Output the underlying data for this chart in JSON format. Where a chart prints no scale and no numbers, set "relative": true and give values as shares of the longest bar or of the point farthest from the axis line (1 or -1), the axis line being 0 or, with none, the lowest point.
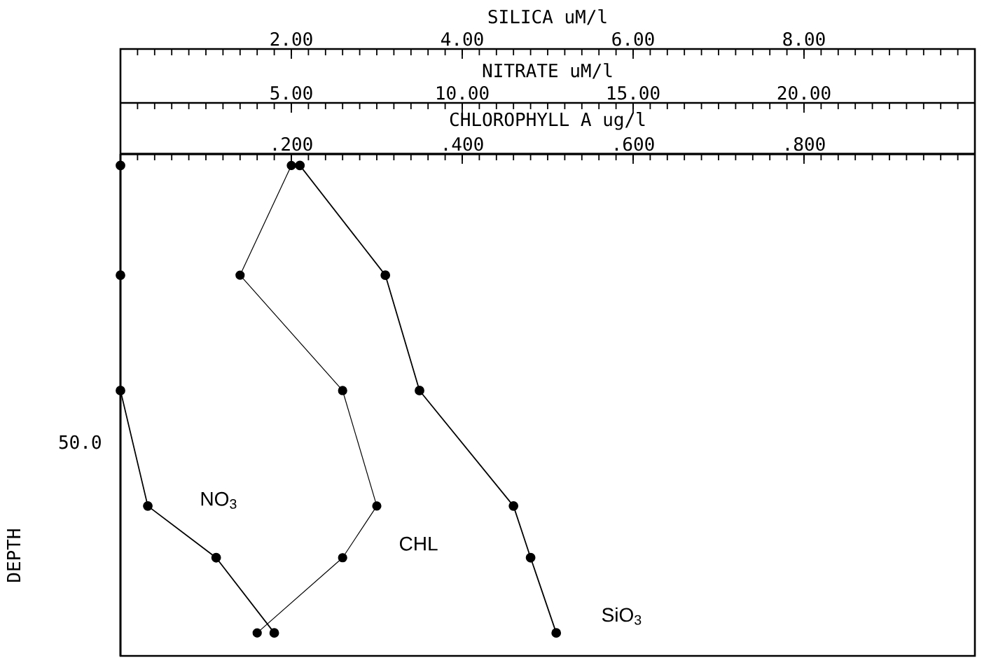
{
  "chart_data": [
    {
      "type": "line",
      "xlabel": "SILICA uM/l",
      "xlim": [
        0,
        10
      ],
      "xticks": [
        {
          "value": 2,
          "label": "2.00"
        },
        {
          "value": 4,
          "label": "4.00"
        },
        {
          "value": 6,
          "label": "6.00"
        },
        {
          "value": 8,
          "label": "8.00"
        }
      ],
      "relative": true,
      "marker": "circle",
      "line_style": "solid",
      "series": [
        {
          "name": "SiO$_{3}$",
          "color": "#000000",
          "x": [
            2.1,
            3.1,
            3.5,
            4.6,
            4.8,
            5.1
          ],
          "values": [
            -0.024,
            -0.253,
            -0.494,
            -0.735,
            -0.843,
            -1
          ]
        }
      ]
    },
    {
      "type": "line",
      "xlabel": "NITRATE uM/l",
      "xlim": [
        0,
        25
      ],
      "xticks": [
        {
          "value": 5,
          "label": "5.00"
        },
        {
          "value": 10,
          "label": "10.00"
        },
        {
          "value": 15,
          "label": "15.00"
        },
        {
          "value": 20,
          "label": "20.00"
        }
      ],
      "relative": true,
      "marker": "circle",
      "line_style": "solid",
      "series": [
        {
          "name": "NO$_{3}$",
          "color": "#000000",
          "x": [
            0,
            0,
            0,
            0.8,
            2.8,
            4.5
          ],
          "values": [
            -0.024,
            -0.253,
            -0.494,
            -0.735,
            -0.843,
            -1
          ]
        }
      ]
    },
    {
      "type": "line",
      "xlabel": "CHLOROPHYLL A ug/l",
      "ylabel": "DEPTH",
      "xlim": [
        0,
        1
      ],
      "xticks": [
        {
          "value": 0.2,
          "label": ".200"
        },
        {
          "value": 0.4,
          "label": ".400"
        },
        {
          "value": 0.6,
          "label": ".600"
        },
        {
          "value": 0.8,
          "label": ".800"
        }
      ],
      "relative": true,
      "marker": "circle",
      "line_style": "solid",
      "annotations": [
        "50.0"
      ],
      "series": [
        {
          "name": "CHL",
          "color": "#000000",
          "x": [
            0.2,
            0.14,
            0.26,
            0.3,
            0.26,
            0.16
          ],
          "values": [
            -0.024,
            -0.253,
            -0.494,
            -0.735,
            -0.843,
            -1
          ]
        }
      ]
    }
  ]
}
